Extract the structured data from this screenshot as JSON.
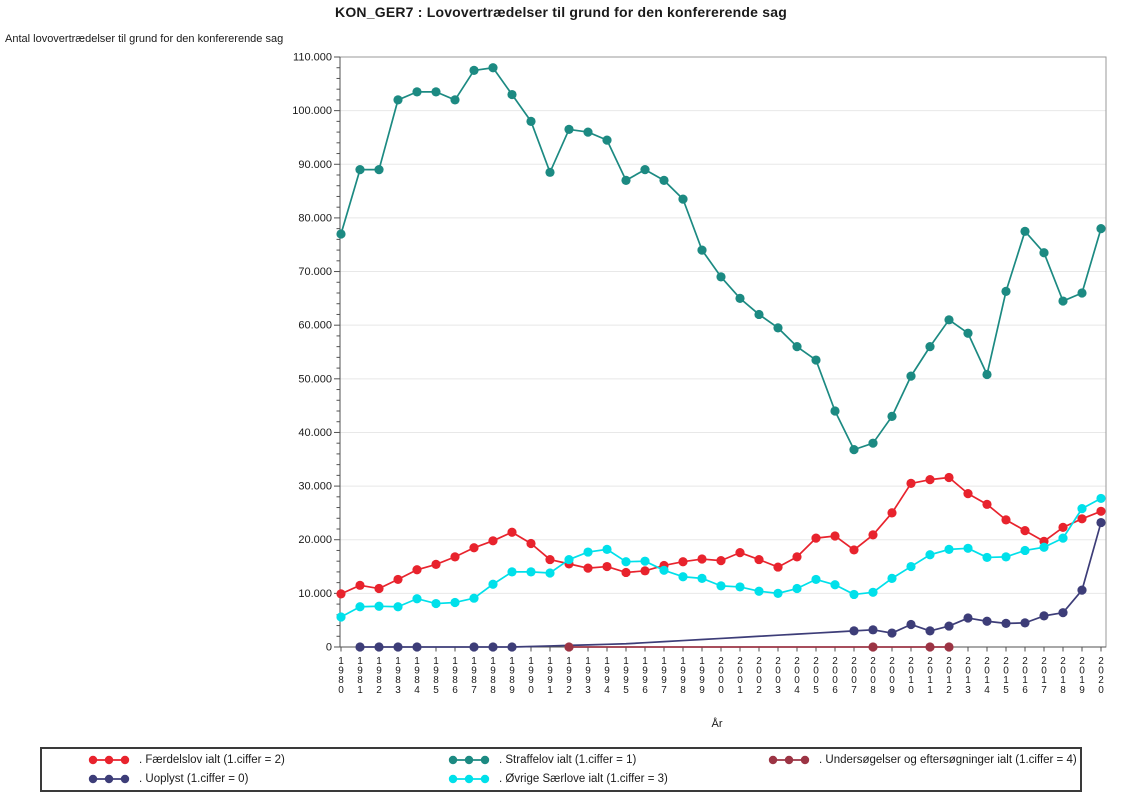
{
  "title": "KON_GER7 : Lovovertrædelser til grund for den konfererende sag",
  "y_axis": {
    "label": "Antal lovovertrædelser til grund for den konfererende sag",
    "tick_labels": [
      "0",
      "10.000",
      "20.000",
      "30.000",
      "40.000",
      "50.000",
      "60.000",
      "70.000",
      "80.000",
      "90.000",
      "100.000",
      "110.000"
    ],
    "max": 110000,
    "major_step": 10000,
    "minor_step": 2000
  },
  "x_axis": {
    "label": "År",
    "first_year": 1980,
    "last_year": 2020
  },
  "colors": {
    "faerdselslov": "#e8232d",
    "straffelov": "#1c8a82",
    "ovrige_saerlove": "#00e0ea",
    "uoplyst": "#3d3d78",
    "undersogelser": "#9c3444",
    "grid": "#e8e8e8",
    "axis": "#515151",
    "frame": "#9a9a9a",
    "text": "#1a1a1a"
  },
  "chart_data": {
    "type": "line",
    "title": "KON_GER7 : Lovovertrædelser til grund for den konfererende sag",
    "xlabel": "År",
    "ylabel": "Antal lovovertrædelser til grund for den konfererende sag",
    "ylim": [
      0,
      110000
    ],
    "grid": "horizontal-major",
    "legend_position": "bottom-box",
    "x": [
      1980,
      1981,
      1982,
      1983,
      1984,
      1985,
      1986,
      1987,
      1988,
      1989,
      1990,
      1991,
      1992,
      1993,
      1994,
      1995,
      1996,
      1997,
      1998,
      1999,
      2000,
      2001,
      2002,
      2003,
      2004,
      2005,
      2006,
      2007,
      2008,
      2009,
      2010,
      2011,
      2012,
      2013,
      2014,
      2015,
      2016,
      2017,
      2018,
      2019,
      2020
    ],
    "series": [
      {
        "name": "Straffelov ialt (1.ciffer = 1)",
        "color": "#1c8a82",
        "values": [
          77000,
          89000,
          89000,
          102000,
          103500,
          103500,
          102000,
          107500,
          108000,
          103000,
          98000,
          88500,
          96500,
          96000,
          94500,
          87000,
          89000,
          87000,
          83500,
          74000,
          69000,
          65000,
          62000,
          59500,
          56000,
          53500,
          44000,
          36800,
          38000,
          43000,
          50500,
          56000,
          61000,
          58500,
          50800,
          66300,
          77500,
          73500,
          64500,
          66000,
          78000
        ]
      },
      {
        "name": "Færdelslov ialt (1.ciffer = 2)",
        "color": "#e8232d",
        "values": [
          9900,
          11500,
          10900,
          12600,
          14400,
          15400,
          16800,
          18500,
          19800,
          21400,
          19300,
          16300,
          15500,
          14700,
          15000,
          13900,
          14200,
          15200,
          15900,
          16400,
          16100,
          17600,
          16300,
          14900,
          16800,
          20300,
          20700,
          18100,
          20900,
          25000,
          30500,
          31200,
          31600,
          28600,
          26600,
          23700,
          21700,
          19700,
          22300,
          23900,
          25300
        ]
      },
      {
        "name": "Øvrige Særlove ialt (1.ciffer = 3)",
        "color": "#00e0ea",
        "values": [
          5600,
          7500,
          7600,
          7500,
          9000,
          8100,
          8300,
          9100,
          11700,
          14000,
          14000,
          13800,
          16300,
          17700,
          18200,
          15900,
          16000,
          14300,
          13100,
          12800,
          11400,
          11200,
          10400,
          10000,
          10900,
          12600,
          11600,
          9800,
          10200,
          12800,
          15000,
          17200,
          18200,
          18400,
          16700,
          16800,
          18000,
          18600,
          20300,
          25800,
          27700
        ]
      },
      {
        "name": "Uoplyst (1.ciffer = 0)",
        "color": "#3d3d78",
        "x": [
          1981,
          1982,
          1983,
          1984,
          1985,
          1986,
          1987,
          1988,
          1989,
          1990,
          1991,
          1992,
          1993,
          1994,
          1995,
          1996,
          1997,
          1998,
          1999,
          2000,
          2001,
          2002,
          2003,
          2004,
          2005,
          2006,
          2007,
          2008,
          2009,
          2010,
          2011,
          2012,
          2013,
          2014,
          2015,
          2016,
          2017,
          2018,
          2019,
          2020
        ],
        "values": [
          0,
          0,
          0,
          0,
          0,
          0,
          0,
          0,
          0,
          100,
          200,
          300,
          400,
          500,
          600,
          800,
          1000,
          1200,
          1400,
          1600,
          1800,
          2000,
          2200,
          2400,
          2600,
          2800,
          3000,
          3200,
          2600,
          4200,
          3000,
          3900,
          5400,
          4800,
          4400,
          4500,
          5800,
          6400,
          10600,
          23200
        ],
        "marker_years": [
          1981,
          1982,
          1983,
          1984,
          1987,
          1988,
          1989,
          2007,
          2008,
          2009,
          2010,
          2011,
          2012,
          2013,
          2014,
          2015,
          2016,
          2017,
          2018,
          2019,
          2020
        ]
      },
      {
        "name": "Undersøgelser og eftersøgninger ialt (1.ciffer = 4)",
        "color": "#9c3444",
        "x": [
          1992,
          1993,
          1994,
          1995,
          1996,
          1997,
          1998,
          1999,
          2000,
          2001,
          2002,
          2003,
          2004,
          2005,
          2006,
          2007,
          2008,
          2009,
          2010,
          2011,
          2012
        ],
        "values": [
          0,
          0,
          0,
          0,
          0,
          0,
          0,
          0,
          0,
          0,
          0,
          0,
          0,
          0,
          0,
          0,
          0,
          0,
          0,
          0,
          0
        ],
        "marker_years": [
          1992,
          2008,
          2011,
          2012
        ]
      }
    ]
  },
  "legend": {
    "items": [
      {
        "label": ". Færdelslov ialt (1.ciffer = 2)",
        "color": "#e8232d"
      },
      {
        "label": ". Straffelov ialt (1.ciffer = 1)",
        "color": "#1c8a82"
      },
      {
        "label": ". Undersøgelser og eftersøgninger ialt (1.ciffer = 4)",
        "color": "#9c3444"
      },
      {
        "label": ". Uoplyst (1.ciffer = 0)",
        "color": "#3d3d78"
      },
      {
        "label": ". Øvrige Særlove ialt (1.ciffer = 3)",
        "color": "#00e0ea"
      }
    ]
  }
}
